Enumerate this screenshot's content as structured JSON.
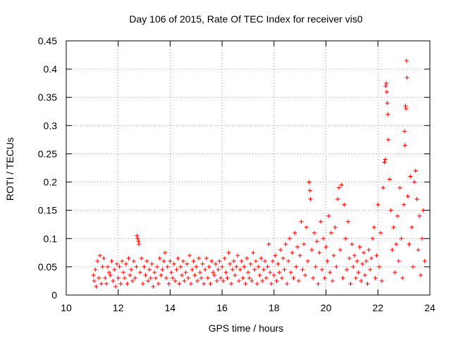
{
  "chart_data": {
    "type": "scatter",
    "title": "Day 106 of 2015, Rate Of TEC Index for receiver vis0",
    "xlabel": "GPS time / hours",
    "ylabel": "ROTI / TECUs",
    "xlim": [
      10,
      24
    ],
    "ylim": [
      0,
      0.45
    ],
    "x_ticks": [
      10,
      12,
      14,
      16,
      18,
      20,
      22,
      24
    ],
    "y_ticks": [
      0,
      0.05,
      0.1,
      0.15,
      0.2,
      0.25,
      0.3,
      0.35,
      0.4,
      0.45
    ],
    "x_tick_labels": [
      "10",
      "12",
      "14",
      "16",
      "18",
      "20",
      "22",
      "24"
    ],
    "y_tick_labels": [
      "0",
      "0.05",
      "0.1",
      "0.15",
      "0.2",
      "0.25",
      "0.3",
      "0.35",
      "0.4",
      "0.45"
    ],
    "grid": true,
    "marker": "+",
    "color": "#ff0000",
    "series": [
      {
        "name": "ROTI",
        "points": [
          [
            11.05,
            0.035
          ],
          [
            11.08,
            0.025
          ],
          [
            11.12,
            0.045
          ],
          [
            11.15,
            0.015
          ],
          [
            11.2,
            0.06
          ],
          [
            11.25,
            0.03
          ],
          [
            11.3,
            0.07
          ],
          [
            11.35,
            0.02
          ],
          [
            11.4,
            0.05
          ],
          [
            11.45,
            0.065
          ],
          [
            11.5,
            0.03
          ],
          [
            11.55,
            0.02
          ],
          [
            11.6,
            0.05
          ],
          [
            11.65,
            0.04
          ],
          [
            11.7,
            0.035
          ],
          [
            11.75,
            0.06
          ],
          [
            11.8,
            0.025
          ],
          [
            11.85,
            0.045
          ],
          [
            11.9,
            0.015
          ],
          [
            11.95,
            0.055
          ],
          [
            12.0,
            0.03
          ],
          [
            12.05,
            0.05
          ],
          [
            12.1,
            0.02
          ],
          [
            12.15,
            0.06
          ],
          [
            12.2,
            0.04
          ],
          [
            12.25,
            0.03
          ],
          [
            12.3,
            0.055
          ],
          [
            12.35,
            0.02
          ],
          [
            12.4,
            0.065
          ],
          [
            12.45,
            0.035
          ],
          [
            12.5,
            0.045
          ],
          [
            12.55,
            0.025
          ],
          [
            12.6,
            0.06
          ],
          [
            12.65,
            0.03
          ],
          [
            12.7,
            0.05
          ],
          [
            12.72,
            0.105
          ],
          [
            12.75,
            0.1
          ],
          [
            12.78,
            0.095
          ],
          [
            12.8,
            0.09
          ],
          [
            12.85,
            0.04
          ],
          [
            12.9,
            0.065
          ],
          [
            12.95,
            0.02
          ],
          [
            13.0,
            0.05
          ],
          [
            13.05,
            0.035
          ],
          [
            13.1,
            0.06
          ],
          [
            13.15,
            0.025
          ],
          [
            13.2,
            0.045
          ],
          [
            13.25,
            0.03
          ],
          [
            13.3,
            0.055
          ],
          [
            13.35,
            0.015
          ],
          [
            13.4,
            0.04
          ],
          [
            13.45,
            0.03
          ],
          [
            13.5,
            0.05
          ],
          [
            13.55,
            0.02
          ],
          [
            13.6,
            0.065
          ],
          [
            13.65,
            0.035
          ],
          [
            13.7,
            0.045
          ],
          [
            13.75,
            0.06
          ],
          [
            13.8,
            0.075
          ],
          [
            13.85,
            0.03
          ],
          [
            13.9,
            0.05
          ],
          [
            13.95,
            0.02
          ],
          [
            14.0,
            0.06
          ],
          [
            14.05,
            0.04
          ],
          [
            14.1,
            0.03
          ],
          [
            14.15,
            0.055
          ],
          [
            14.2,
            0.025
          ],
          [
            14.25,
            0.045
          ],
          [
            14.3,
            0.065
          ],
          [
            14.35,
            0.02
          ],
          [
            14.4,
            0.05
          ],
          [
            14.45,
            0.035
          ],
          [
            14.5,
            0.06
          ],
          [
            14.55,
            0.025
          ],
          [
            14.6,
            0.04
          ],
          [
            14.65,
            0.055
          ],
          [
            14.7,
            0.03
          ],
          [
            14.75,
            0.07
          ],
          [
            14.8,
            0.02
          ],
          [
            14.85,
            0.045
          ],
          [
            14.9,
            0.06
          ],
          [
            14.95,
            0.035
          ],
          [
            15.0,
            0.05
          ],
          [
            15.05,
            0.025
          ],
          [
            15.1,
            0.065
          ],
          [
            15.15,
            0.04
          ],
          [
            15.2,
            0.03
          ],
          [
            15.25,
            0.055
          ],
          [
            15.3,
            0.02
          ],
          [
            15.35,
            0.045
          ],
          [
            15.4,
            0.065
          ],
          [
            15.45,
            0.03
          ],
          [
            15.5,
            0.05
          ],
          [
            15.55,
            0.02
          ],
          [
            15.6,
            0.06
          ],
          [
            15.65,
            0.04
          ],
          [
            15.7,
            0.035
          ],
          [
            15.75,
            0.055
          ],
          [
            15.8,
            0.025
          ],
          [
            15.85,
            0.045
          ],
          [
            15.9,
            0.06
          ],
          [
            15.95,
            0.03
          ],
          [
            16.0,
            0.05
          ],
          [
            16.05,
            0.025
          ],
          [
            16.1,
            0.065
          ],
          [
            16.15,
            0.04
          ],
          [
            16.2,
            0.03
          ],
          [
            16.25,
            0.075
          ],
          [
            16.3,
            0.055
          ],
          [
            16.35,
            0.02
          ],
          [
            16.4,
            0.045
          ],
          [
            16.45,
            0.06
          ],
          [
            16.5,
            0.035
          ],
          [
            16.55,
            0.05
          ],
          [
            16.6,
            0.07
          ],
          [
            16.65,
            0.025
          ],
          [
            16.7,
            0.045
          ],
          [
            16.75,
            0.06
          ],
          [
            16.8,
            0.03
          ],
          [
            16.85,
            0.05
          ],
          [
            16.9,
            0.02
          ],
          [
            16.95,
            0.065
          ],
          [
            17.0,
            0.04
          ],
          [
            17.05,
            0.03
          ],
          [
            17.1,
            0.055
          ],
          [
            17.15,
            0.025
          ],
          [
            17.2,
            0.075
          ],
          [
            17.25,
            0.045
          ],
          [
            17.3,
            0.06
          ],
          [
            17.35,
            0.02
          ],
          [
            17.4,
            0.05
          ],
          [
            17.45,
            0.035
          ],
          [
            17.5,
            0.065
          ],
          [
            17.55,
            0.025
          ],
          [
            17.6,
            0.045
          ],
          [
            17.65,
            0.06
          ],
          [
            17.7,
            0.03
          ],
          [
            17.75,
            0.05
          ],
          [
            17.8,
            0.09
          ],
          [
            17.85,
            0.04
          ],
          [
            17.9,
            0.02
          ],
          [
            17.95,
            0.06
          ],
          [
            18.0,
            0.035
          ],
          [
            18.05,
            0.07
          ],
          [
            18.1,
            0.025
          ],
          [
            18.15,
            0.055
          ],
          [
            18.2,
            0.04
          ],
          [
            18.25,
            0.08
          ],
          [
            18.3,
            0.03
          ],
          [
            18.35,
            0.065
          ],
          [
            18.4,
            0.045
          ],
          [
            18.45,
            0.09
          ],
          [
            18.5,
            0.02
          ],
          [
            18.55,
            0.06
          ],
          [
            18.6,
            0.1
          ],
          [
            18.65,
            0.04
          ],
          [
            18.7,
            0.075
          ],
          [
            18.75,
            0.03
          ],
          [
            18.8,
            0.11
          ],
          [
            18.85,
            0.05
          ],
          [
            18.9,
            0.085
          ],
          [
            18.95,
            0.025
          ],
          [
            19.0,
            0.07
          ],
          [
            19.05,
            0.13
          ],
          [
            19.1,
            0.045
          ],
          [
            19.15,
            0.09
          ],
          [
            19.2,
            0.035
          ],
          [
            19.25,
            0.12
          ],
          [
            19.3,
            0.06
          ],
          [
            19.35,
            0.2
          ],
          [
            19.38,
            0.185
          ],
          [
            19.4,
            0.17
          ],
          [
            19.45,
            0.08
          ],
          [
            19.5,
            0.03
          ],
          [
            19.55,
            0.11
          ],
          [
            19.6,
            0.05
          ],
          [
            19.65,
            0.095
          ],
          [
            19.7,
            0.02
          ],
          [
            19.75,
            0.075
          ],
          [
            19.8,
            0.13
          ],
          [
            19.85,
            0.045
          ],
          [
            19.9,
            0.1
          ],
          [
            19.95,
            0.03
          ],
          [
            20.0,
            0.085
          ],
          [
            20.05,
            0.06
          ],
          [
            20.1,
            0.14
          ],
          [
            20.15,
            0.04
          ],
          [
            20.2,
            0.11
          ],
          [
            20.25,
            0.025
          ],
          [
            20.3,
            0.07
          ],
          [
            20.35,
            0.12
          ],
          [
            20.4,
            0.05
          ],
          [
            20.45,
            0.17
          ],
          [
            20.5,
            0.19
          ],
          [
            20.55,
            0.08
          ],
          [
            20.6,
            0.195
          ],
          [
            20.65,
            0.03
          ],
          [
            20.7,
            0.16
          ],
          [
            20.75,
            0.1
          ],
          [
            20.8,
            0.045
          ],
          [
            20.85,
            0.13
          ],
          [
            20.9,
            0.065
          ],
          [
            20.95,
            0.02
          ],
          [
            21.0,
            0.09
          ],
          [
            21.05,
            0.05
          ],
          [
            21.1,
            0.07
          ],
          [
            21.15,
            0.03
          ],
          [
            21.2,
            0.06
          ],
          [
            21.25,
            0.04
          ],
          [
            21.3,
            0.085
          ],
          [
            21.35,
            0.025
          ],
          [
            21.4,
            0.055
          ],
          [
            21.45,
            0.075
          ],
          [
            21.5,
            0.035
          ],
          [
            21.55,
            0.06
          ],
          [
            21.6,
            0.02
          ],
          [
            21.65,
            0.08
          ],
          [
            21.7,
            0.045
          ],
          [
            21.75,
            0.065
          ],
          [
            21.8,
            0.1
          ],
          [
            21.85,
            0.12
          ],
          [
            21.9,
            0.03
          ],
          [
            21.95,
            0.07
          ],
          [
            22.0,
            0.16
          ],
          [
            22.05,
            0.05
          ],
          [
            22.1,
            0.11
          ],
          [
            22.15,
            0.025
          ],
          [
            22.2,
            0.19
          ],
          [
            22.25,
            0.235
          ],
          [
            22.28,
            0.24
          ],
          [
            22.3,
            0.37
          ],
          [
            22.32,
            0.375
          ],
          [
            22.34,
            0.36
          ],
          [
            22.36,
            0.34
          ],
          [
            22.38,
            0.32
          ],
          [
            22.4,
            0.275
          ],
          [
            22.45,
            0.205
          ],
          [
            22.5,
            0.15
          ],
          [
            22.55,
            0.08
          ],
          [
            22.6,
            0.12
          ],
          [
            22.65,
            0.04
          ],
          [
            22.7,
            0.09
          ],
          [
            22.75,
            0.14
          ],
          [
            22.8,
            0.06
          ],
          [
            22.85,
            0.19
          ],
          [
            22.9,
            0.1
          ],
          [
            22.95,
            0.03
          ],
          [
            23.0,
            0.16
          ],
          [
            23.02,
            0.29
          ],
          [
            23.04,
            0.265
          ],
          [
            23.06,
            0.335
          ],
          [
            23.08,
            0.33
          ],
          [
            23.1,
            0.415
          ],
          [
            23.12,
            0.385
          ],
          [
            23.15,
            0.175
          ],
          [
            23.2,
            0.09
          ],
          [
            23.25,
            0.21
          ],
          [
            23.3,
            0.12
          ],
          [
            23.35,
            0.05
          ],
          [
            23.4,
            0.2
          ],
          [
            23.45,
            0.22
          ],
          [
            23.5,
            0.17
          ],
          [
            23.55,
            0.08
          ],
          [
            23.6,
            0.14
          ],
          [
            23.65,
            0.035
          ],
          [
            23.7,
            0.1
          ],
          [
            23.75,
            0.15
          ],
          [
            23.8,
            0.06
          ]
        ]
      }
    ]
  }
}
